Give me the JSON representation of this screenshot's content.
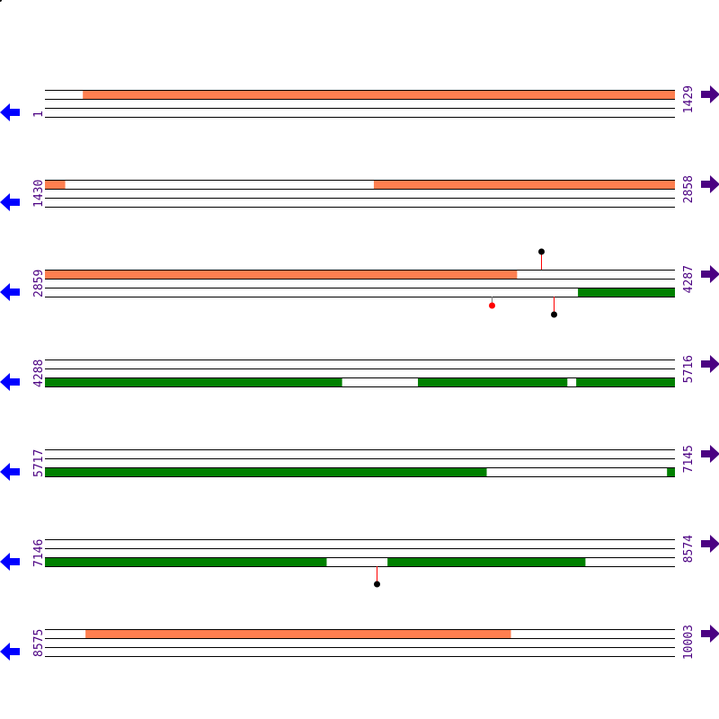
{
  "colors": {
    "forward": "#ff7f50",
    "reverse": "#008000",
    "label": "#4b0082",
    "left_arrow": "#0000ff",
    "right_arrow": "#4b0082",
    "line": "#000000"
  },
  "bases_per_row": 1429,
  "rows": [
    {
      "start_label": "1",
      "end_label": "1429",
      "start": 1,
      "end": 1429,
      "features": [
        {
          "track": "top",
          "color": "forward",
          "from": 87,
          "to": 1429
        }
      ],
      "markers": []
    },
    {
      "start_label": "1430",
      "end_label": "2858",
      "start": 1430,
      "end": 2858,
      "features": [
        {
          "track": "top",
          "color": "forward",
          "from": 1430,
          "to": 1475
        },
        {
          "track": "top",
          "color": "forward",
          "from": 2176,
          "to": 2858
        }
      ],
      "markers": []
    },
    {
      "start_label": "2859",
      "end_label": "4287",
      "start": 2859,
      "end": 4287,
      "features": [
        {
          "track": "top",
          "color": "forward",
          "from": 2859,
          "to": 3929
        },
        {
          "track": "bottom",
          "color": "reverse",
          "from": 4068,
          "to": 4287
        }
      ],
      "markers": [
        {
          "pos": 3984,
          "side": "above",
          "level": 2,
          "stem": "#ff0000",
          "dot": "#000000"
        },
        {
          "pos": 3872,
          "side": "below",
          "level": 1,
          "stem": "#808080",
          "dot": "#ff0000"
        },
        {
          "pos": 4013,
          "side": "below",
          "level": 2,
          "stem": "#ff0000",
          "dot": "#000000"
        }
      ]
    },
    {
      "start_label": "4288",
      "end_label": "5716",
      "start": 4288,
      "end": 5716,
      "features": [
        {
          "track": "bottom",
          "color": "reverse",
          "from": 4288,
          "to": 4961
        },
        {
          "track": "bottom",
          "color": "reverse",
          "from": 5134,
          "to": 5472
        },
        {
          "track": "bottom",
          "color": "reverse",
          "from": 5493,
          "to": 5716
        }
      ],
      "markers": []
    },
    {
      "start_label": "5717",
      "end_label": "7145",
      "start": 5717,
      "end": 7145,
      "features": [
        {
          "track": "bottom",
          "color": "reverse",
          "from": 5717,
          "to": 6718
        },
        {
          "track": "bottom",
          "color": "reverse",
          "from": 7128,
          "to": 7145
        }
      ],
      "markers": []
    },
    {
      "start_label": "7146",
      "end_label": "8574",
      "start": 7146,
      "end": 8574,
      "features": [
        {
          "track": "bottom",
          "color": "reverse",
          "from": 7146,
          "to": 7784
        },
        {
          "track": "bottom",
          "color": "reverse",
          "from": 7923,
          "to": 8371
        }
      ],
      "markers": [
        {
          "pos": 7898,
          "side": "below",
          "level": 2,
          "stem": "#ff0000",
          "dot": "#000000"
        }
      ]
    },
    {
      "start_label": "8575",
      "end_label": "10003",
      "start": 8575,
      "end": 10003,
      "features": [
        {
          "track": "top",
          "color": "forward",
          "from": 8667,
          "to": 9631
        }
      ],
      "markers": []
    }
  ]
}
